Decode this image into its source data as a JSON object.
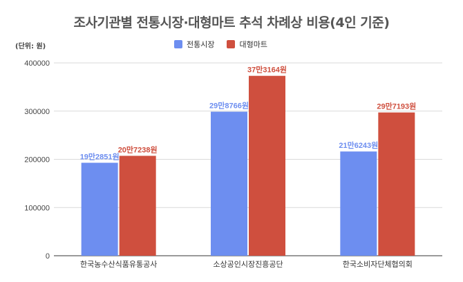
{
  "chart_data": {
    "type": "bar",
    "title": "조사기관별 전통시장·대형마트 추석 차례상 비용(4인 기준)",
    "unit_label": "(단위: 원)",
    "categories": [
      "한국농수산식품유통공사",
      "소상공인시장진흥공단",
      "한국소비자단체협의회"
    ],
    "series": [
      {
        "name": "전통시장",
        "color": "#6d8ef0",
        "values": [
          192851,
          298766,
          216243
        ],
        "labels": [
          "19만2851원",
          "29만8766원",
          "21만6243원"
        ]
      },
      {
        "name": "대형마트",
        "color": "#cf4f3e",
        "values": [
          207238,
          373164,
          297193
        ],
        "labels": [
          "20만7238원",
          "37만3164원",
          "29만7193원"
        ]
      }
    ],
    "ylim": [
      0,
      400000
    ],
    "yticks": [
      "0",
      "100000",
      "200000",
      "300000",
      "400000"
    ],
    "ytick_values": [
      0,
      100000,
      200000,
      300000,
      400000
    ],
    "grid": true,
    "legend_position": "top"
  }
}
